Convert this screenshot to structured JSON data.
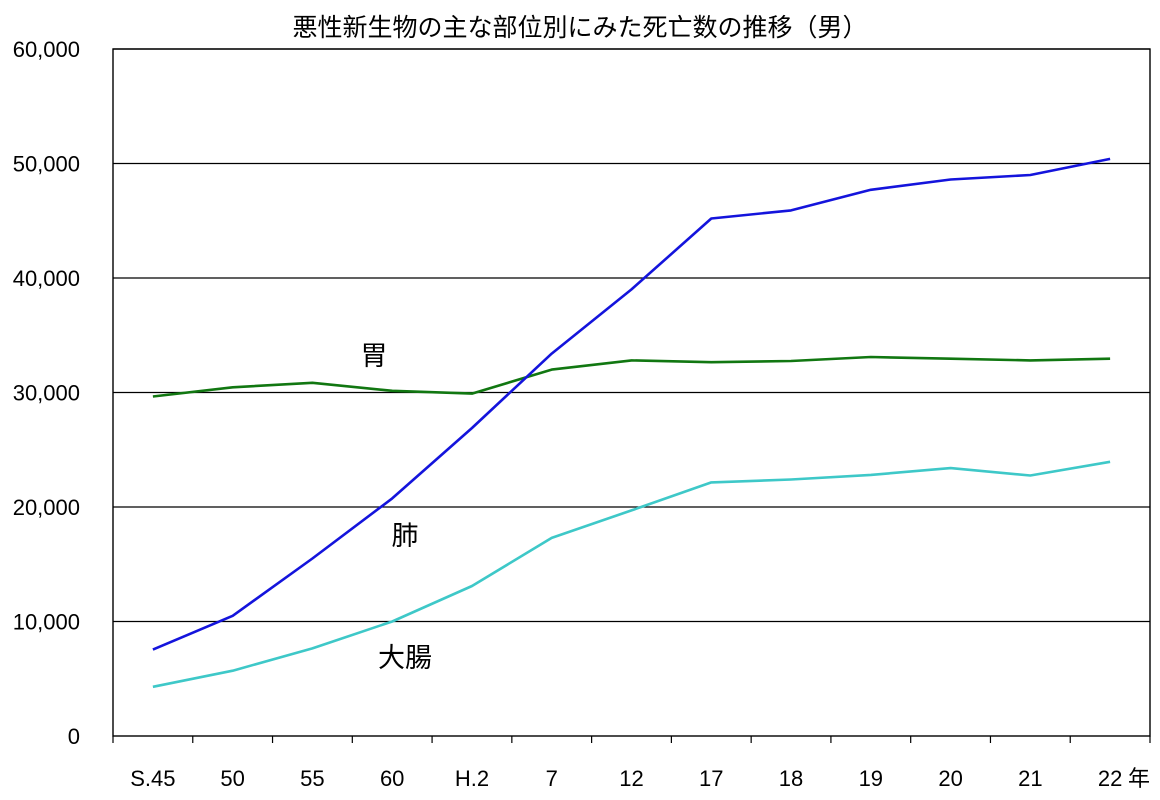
{
  "chart_data": {
    "type": "line",
    "title": "悪性新生物の主な部位別にみた死亡数の推移（男）",
    "xlabel": "",
    "ylabel": "",
    "x_unit": "年",
    "categories": [
      "S.45",
      "50",
      "55",
      "60",
      "H.2",
      "7",
      "12",
      "17",
      "18",
      "19",
      "20",
      "21",
      "22"
    ],
    "ylim": [
      0,
      60000
    ],
    "yticks": [
      "0",
      "10,000",
      "20,000",
      "30,000",
      "40,000",
      "50,000",
      "60,000"
    ],
    "grid": "horizontal",
    "series": [
      {
        "name": "胃",
        "color": "#117711",
        "values": [
          29650,
          30450,
          30850,
          30150,
          29900,
          32000,
          32800,
          32650,
          32750,
          33100,
          32950,
          32800,
          32950
        ]
      },
      {
        "name": "肺",
        "color": "#1414dc",
        "values": [
          7550,
          10500,
          15500,
          20750,
          26900,
          33400,
          39000,
          45200,
          45900,
          47700,
          48600,
          49000,
          50400
        ]
      },
      {
        "name": "大腸",
        "color": "#3ec8c8",
        "values": [
          4300,
          5700,
          7650,
          10000,
          13100,
          17300,
          19700,
          22150,
          22400,
          22800,
          23400,
          22750,
          23950
        ]
      }
    ]
  }
}
